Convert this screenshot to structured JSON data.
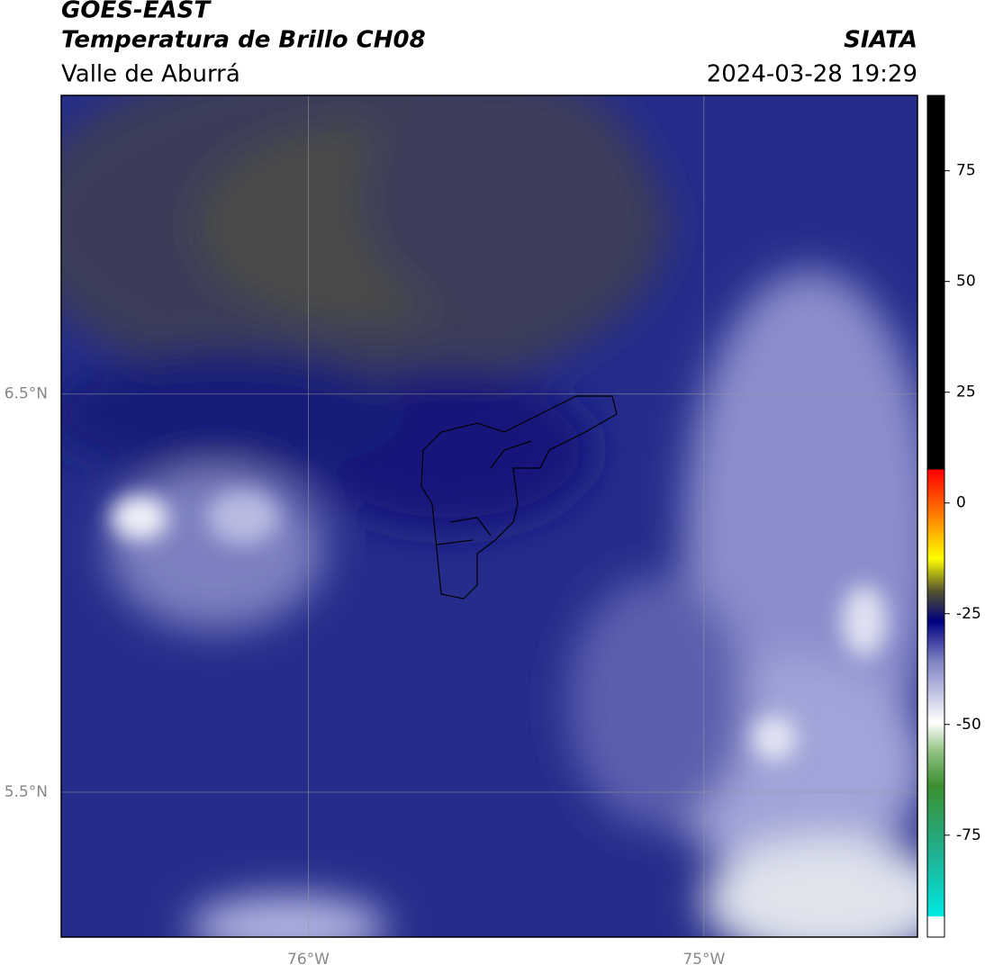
{
  "header": {
    "title": "GOES-EAST",
    "subtitle": "Temperatura de Brillo CH08",
    "region": "Valle de Aburrá",
    "source": "SIATA",
    "timestamp": "2024-03-28 19:29"
  },
  "map": {
    "lon_range": [
      -76.625,
      -74.46
    ],
    "lat_range": [
      5.136,
      7.25
    ],
    "lon_ticks": [
      {
        "value": -76,
        "label": "76°W"
      },
      {
        "value": -75,
        "label": "75°W"
      }
    ],
    "lat_ticks": [
      {
        "value": 6.5,
        "label": "6.5°N"
      },
      {
        "value": 5.5,
        "label": "5.5°N"
      }
    ],
    "grid": true
  },
  "colorbar": {
    "range": [
      -98,
      92
    ],
    "ticks": [
      75,
      50,
      25,
      0,
      -25,
      -50,
      -75
    ]
  }
}
